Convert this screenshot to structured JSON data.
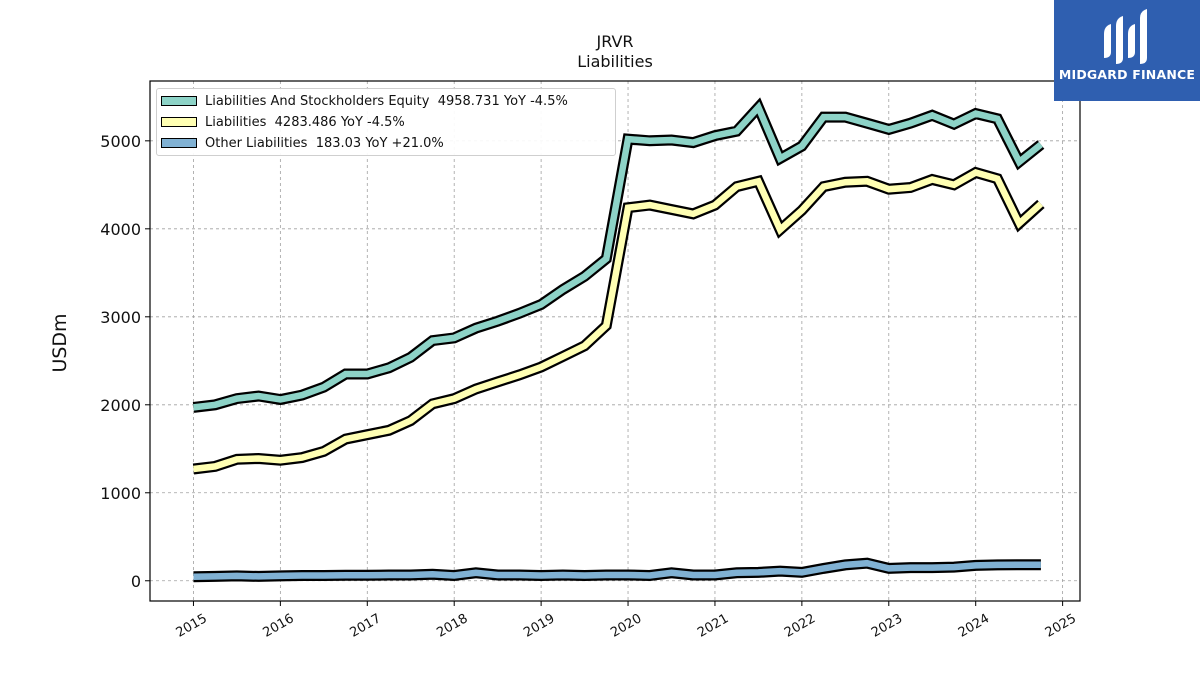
{
  "title": "JRVR",
  "subtitle": "Liabilities",
  "logo_text": "MIDGARD FINANCE",
  "colors": {
    "equity": "#8dd3c7",
    "liabilities": "#ffffb3",
    "other": "#80b1d3",
    "logo_bg": "#2f5fb0"
  },
  "legend": [
    {
      "label": "Liabilities And Stockholders Equity  4958.731 YoY -4.5%"
    },
    {
      "label": "Liabilities  4283.486 YoY -4.5%"
    },
    {
      "label": "Other Liabilities  183.03 YoY +21.0%"
    }
  ],
  "chart_data": {
    "type": "line",
    "title": "JRVR",
    "subtitle": "Liabilities",
    "ylabel": "USDm",
    "xlabel": "",
    "xlim": [
      2014.5,
      2025.2
    ],
    "ylim": [
      -230,
      5680
    ],
    "x_ticks": [
      "2015",
      "2016",
      "2017",
      "2018",
      "2019",
      "2020",
      "2021",
      "2022",
      "2023",
      "2024",
      "2025"
    ],
    "y_ticks": [
      "0",
      "1000",
      "2000",
      "3000",
      "4000",
      "5000"
    ],
    "grid": true,
    "legend_position": "top-left",
    "x": [
      2015.0,
      2015.25,
      2015.5,
      2015.75,
      2016.0,
      2016.25,
      2016.5,
      2016.75,
      2017.0,
      2017.25,
      2017.5,
      2017.75,
      2018.0,
      2018.25,
      2018.5,
      2018.75,
      2019.0,
      2019.25,
      2019.5,
      2019.75,
      2020.0,
      2020.25,
      2020.5,
      2020.75,
      2021.0,
      2021.25,
      2021.5,
      2021.75,
      2022.0,
      2022.25,
      2022.5,
      2022.75,
      2023.0,
      2023.25,
      2023.5,
      2023.75,
      2024.0,
      2024.25,
      2024.5,
      2024.75
    ],
    "series": [
      {
        "name": "Liabilities And Stockholders Equity",
        "values": [
          1970,
          2000,
          2070,
          2100,
          2060,
          2110,
          2200,
          2350,
          2350,
          2420,
          2540,
          2730,
          2760,
          2870,
          2950,
          3040,
          3140,
          3310,
          3460,
          3660,
          5020,
          5000,
          5010,
          4980,
          5060,
          5110,
          5380,
          4800,
          4940,
          5270,
          5270,
          5200,
          5130,
          5200,
          5290,
          5190,
          5310,
          5250,
          4760,
          4958.731
        ]
      },
      {
        "name": "Liabilities",
        "values": [
          1270,
          1300,
          1380,
          1390,
          1370,
          1400,
          1470,
          1610,
          1660,
          1710,
          1820,
          2010,
          2070,
          2180,
          2260,
          2340,
          2430,
          2550,
          2670,
          2900,
          4240,
          4270,
          4220,
          4170,
          4270,
          4480,
          4540,
          3990,
          4210,
          4480,
          4530,
          4540,
          4450,
          4470,
          4560,
          4500,
          4640,
          4570,
          4060,
          4283.486
        ]
      },
      {
        "name": "Other Liabilities",
        "values": [
          45,
          50,
          55,
          50,
          55,
          60,
          60,
          62,
          62,
          65,
          65,
          75,
          60,
          90,
          65,
          65,
          60,
          65,
          60,
          65,
          65,
          60,
          90,
          65,
          65,
          90,
          95,
          110,
          95,
          140,
          180,
          200,
          140,
          150,
          150,
          155,
          175,
          180,
          182,
          183.03
        ]
      }
    ]
  }
}
